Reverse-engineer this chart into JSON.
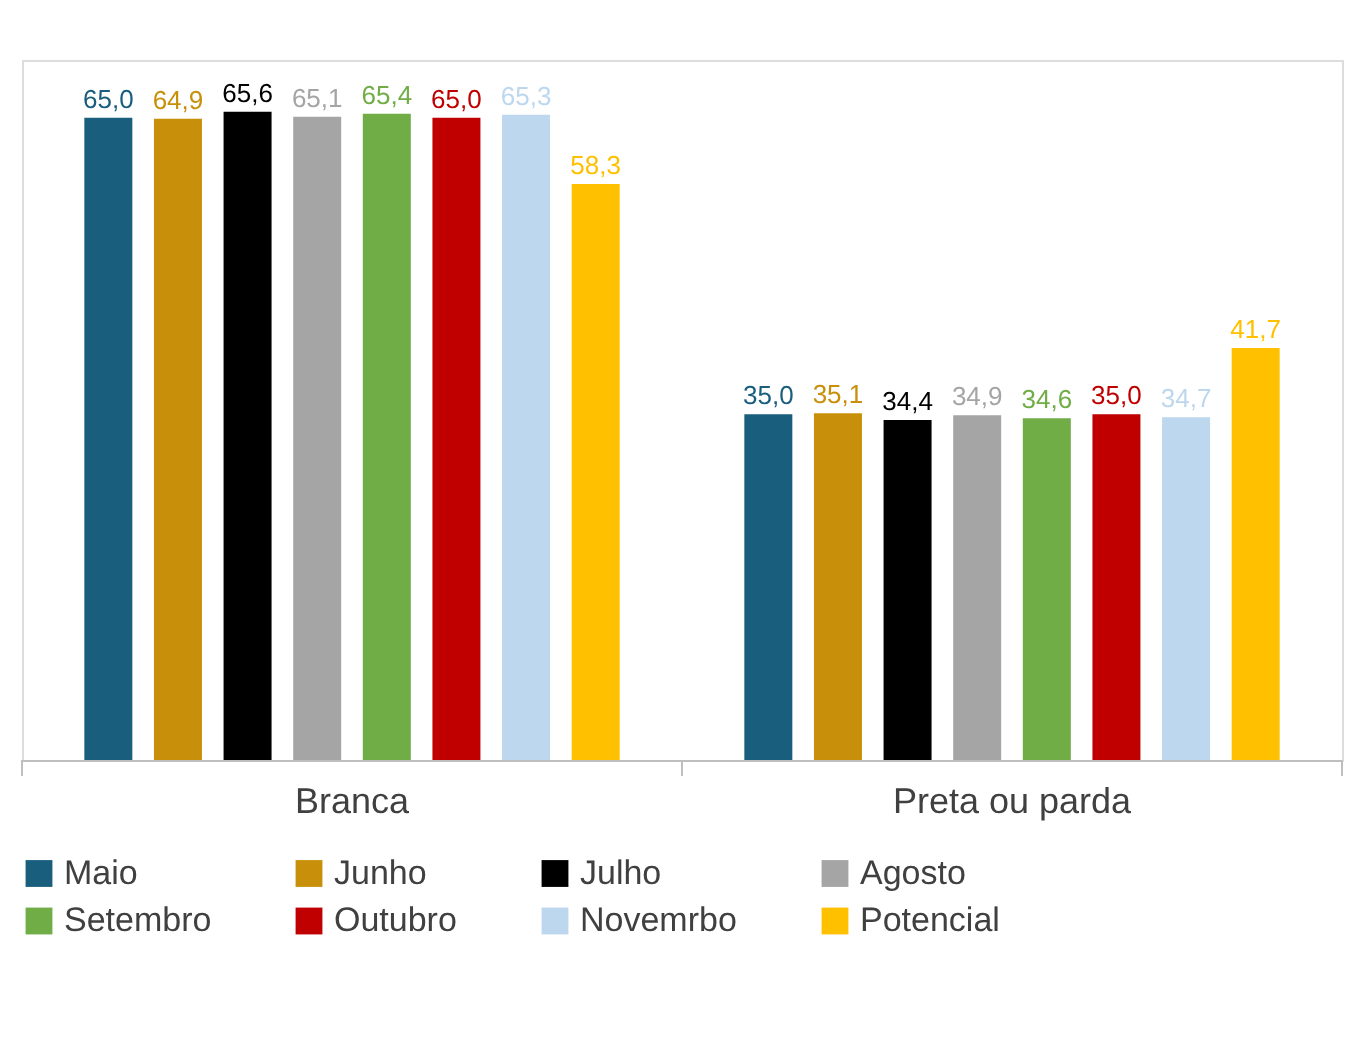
{
  "chart_data": {
    "type": "bar",
    "categories": [
      "Branca",
      "Preta ou parda"
    ],
    "legend": "bottom",
    "grid": false,
    "series": [
      {
        "name": "Maio",
        "color": "#1a5e7e",
        "values": [
          65.0,
          35.0
        ],
        "value_labels": [
          "65,0",
          "35,0"
        ]
      },
      {
        "name": "Junho",
        "color": "#c8900a",
        "values": [
          64.9,
          35.1
        ],
        "value_labels": [
          "64,9",
          "35,1"
        ]
      },
      {
        "name": "Julho",
        "color": "#000000",
        "values": [
          65.6,
          34.4
        ],
        "value_labels": [
          "65,6",
          "34,4"
        ]
      },
      {
        "name": "Agosto",
        "color": "#a5a5a5",
        "values": [
          65.1,
          34.9
        ],
        "value_labels": [
          "65,1",
          "34,9"
        ]
      },
      {
        "name": "Setembro",
        "color": "#70ad47",
        "values": [
          65.4,
          34.6
        ],
        "value_labels": [
          "65,4",
          "34,6"
        ]
      },
      {
        "name": "Outubro",
        "color": "#c00000",
        "values": [
          65.0,
          35.0
        ],
        "value_labels": [
          "65,0",
          "35,0"
        ]
      },
      {
        "name": "Novemrbo",
        "color": "#bdd7ee",
        "values": [
          65.3,
          34.7
        ],
        "value_labels": [
          "65,3",
          "34,7"
        ]
      },
      {
        "name": "Potencial",
        "color": "#ffc000",
        "values": [
          58.3,
          41.7
        ],
        "value_labels": [
          "58,3",
          "41,7"
        ]
      }
    ]
  }
}
